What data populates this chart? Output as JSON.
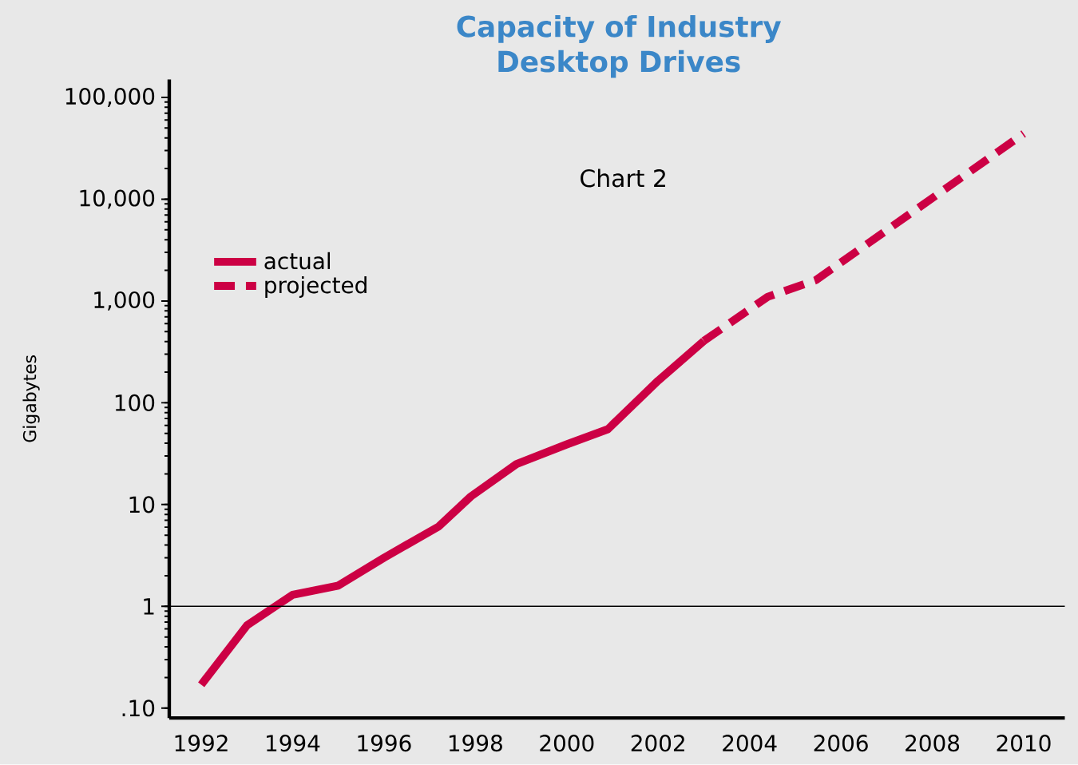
{
  "chart_data": {
    "type": "line",
    "title": "Capacity of Industry Desktop Drives",
    "subtitle": "Chart 2",
    "ylabel": "Gigabytes",
    "log": "y",
    "grid": false,
    "legend": "top left",
    "marker": "none",
    "xlim": [
      1991.3,
      2010.9
    ],
    "ylim": [
      0.08,
      150000
    ],
    "xticks": [
      1992,
      1994,
      1996,
      1998,
      2000,
      2002,
      2004,
      2006,
      2008,
      2010
    ],
    "yticks": [
      {
        "value": 0.1,
        "label": ".10"
      },
      1,
      10,
      100,
      {
        "value": 1000,
        "label": "1,000"
      },
      {
        "value": 10000,
        "label": "10,000"
      },
      {
        "value": 100000,
        "label": "100,000"
      }
    ],
    "ref_lines": [
      {
        "axis": "y",
        "value": 1,
        "color": "#000000",
        "line_style": "solid"
      }
    ],
    "series": [
      {
        "name": "actual",
        "color": "#cc0044",
        "line_style": "solid",
        "x": [
          1992,
          1993,
          1994,
          1995,
          1996,
          1997.2,
          1997.9,
          1998.9,
          2000,
          2000.9,
          2002,
          2003
        ],
        "values": [
          0.17,
          0.65,
          1.3,
          1.6,
          3,
          6.1,
          12,
          25,
          39,
          55,
          165,
          405
        ]
      },
      {
        "name": "projected",
        "color": "#cc0044",
        "line_style": "dashed",
        "x": [
          2003,
          2004.4,
          2005.45,
          2010
        ],
        "values": [
          405,
          1100,
          1600,
          44000
        ]
      }
    ]
  }
}
